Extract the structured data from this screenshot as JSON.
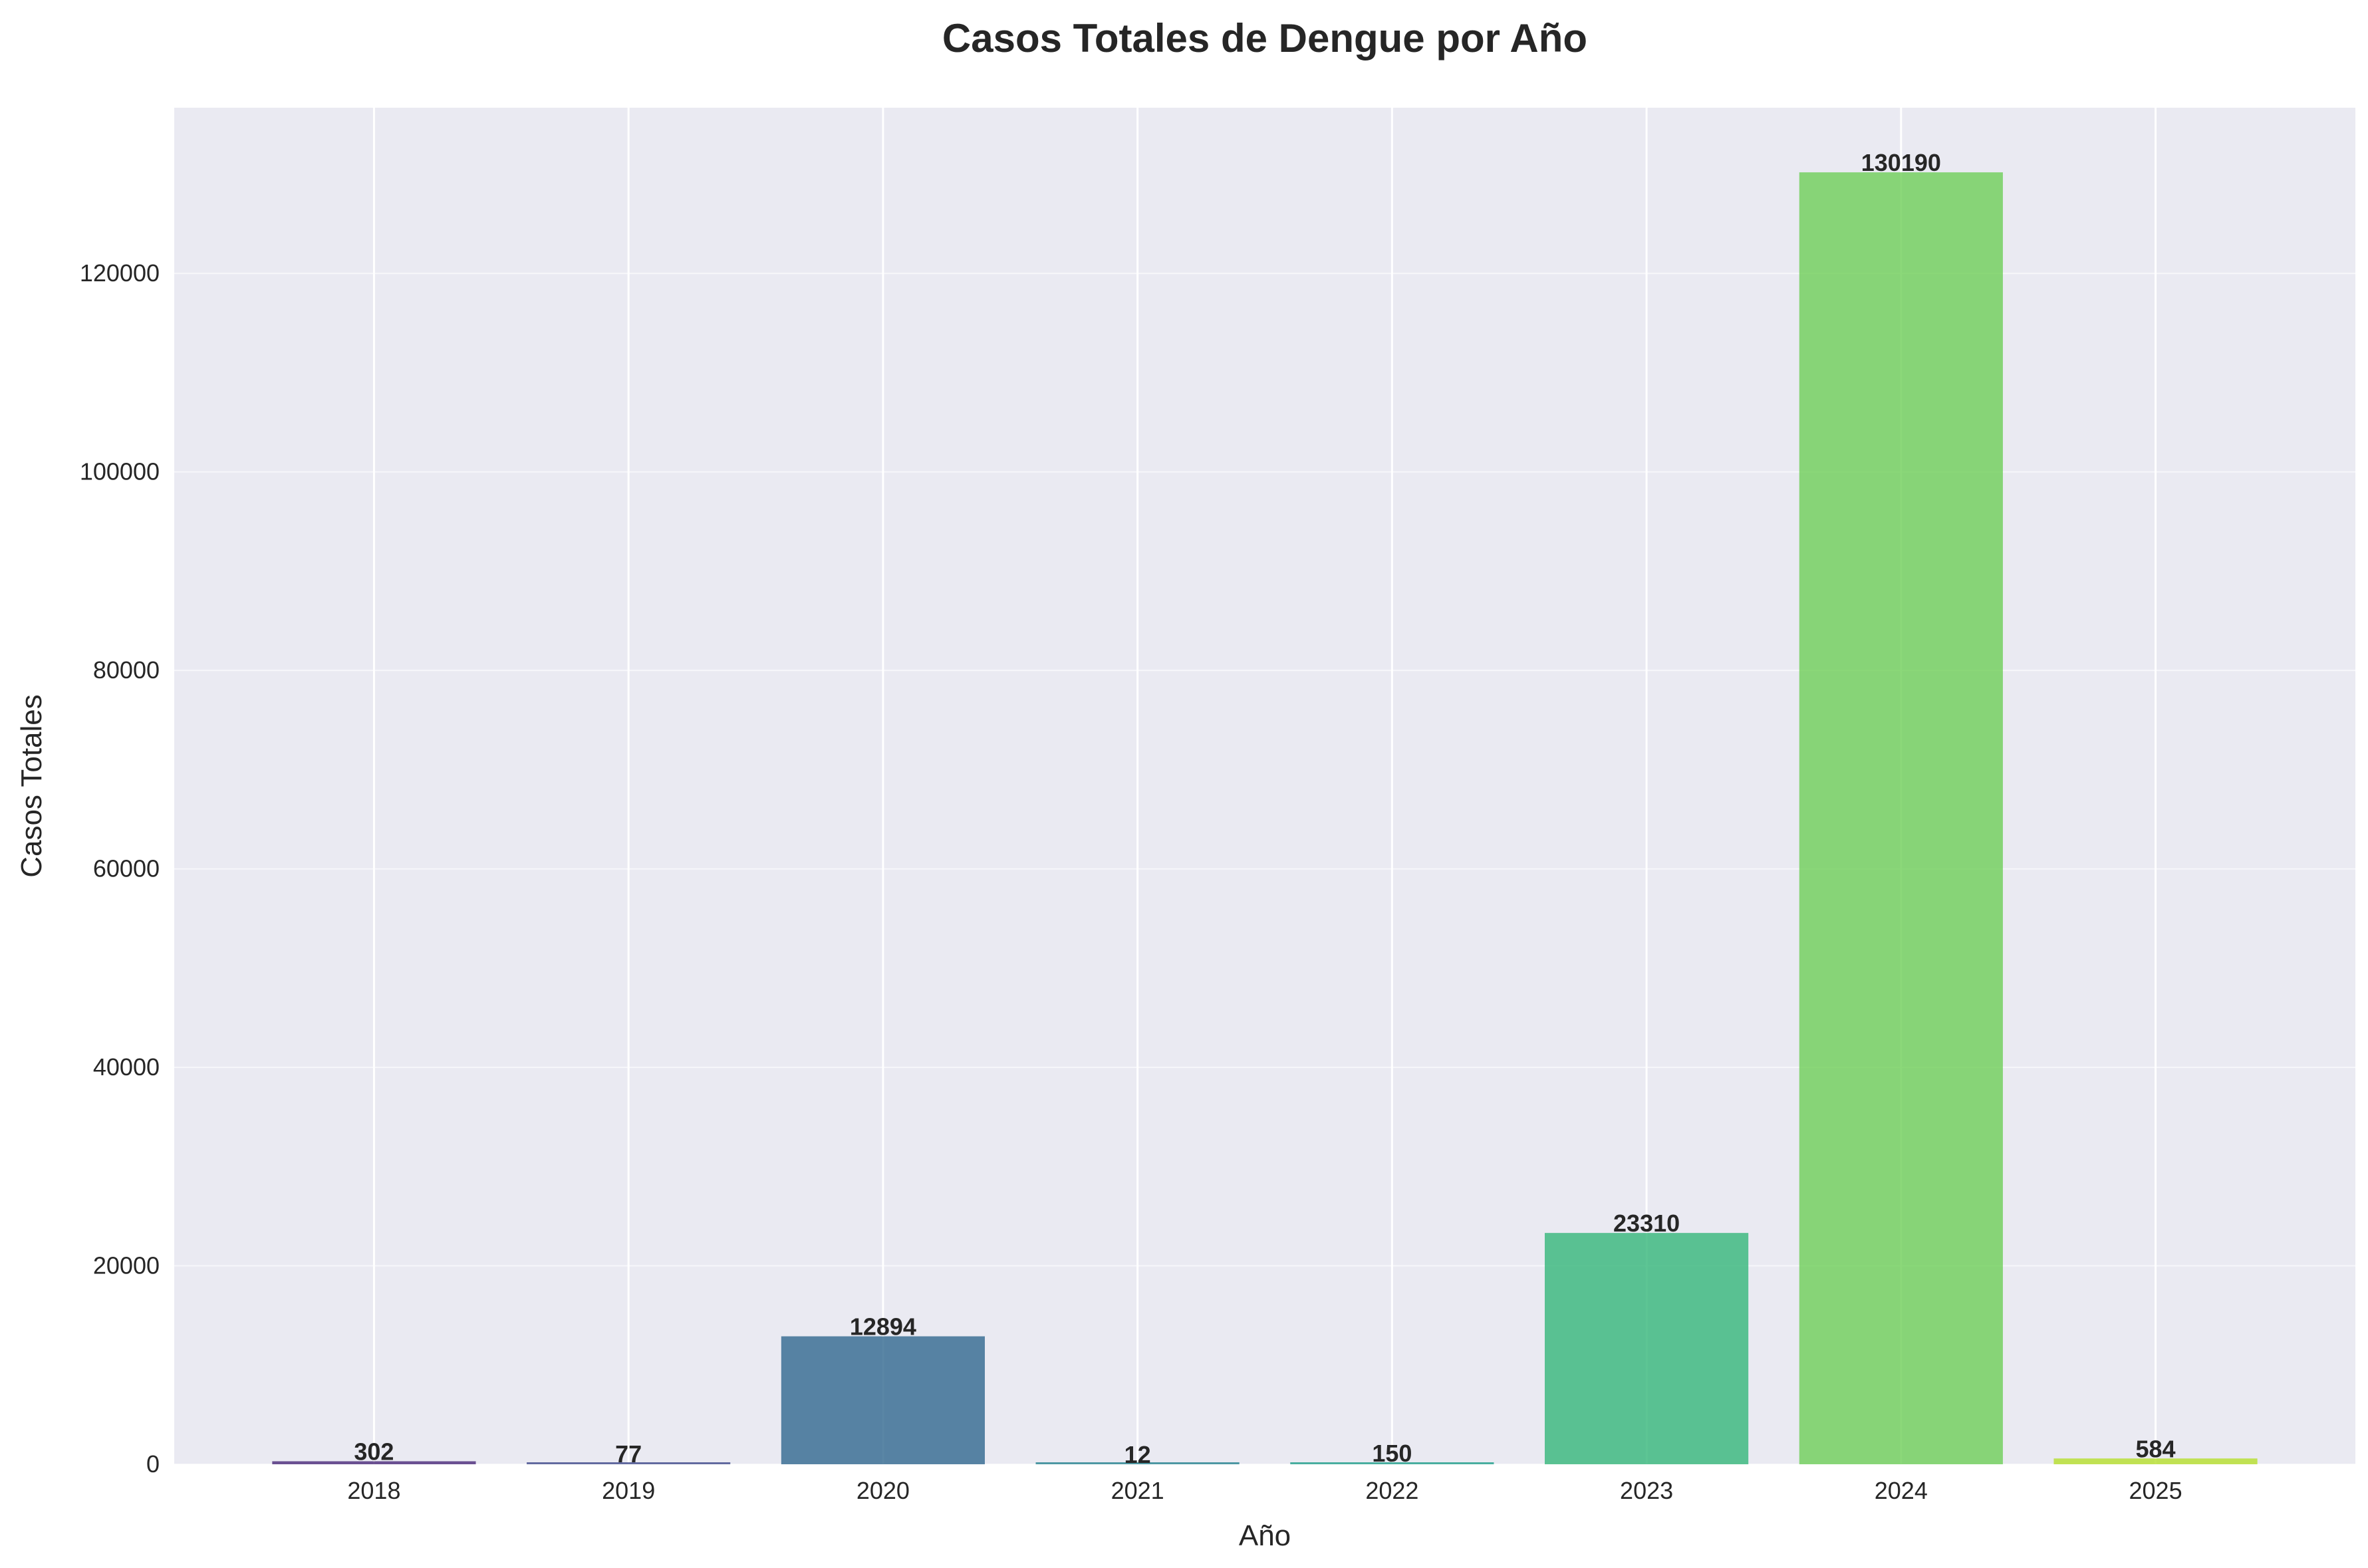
{
  "chart_data": {
    "type": "bar",
    "title": "Casos Totales de Dengue por Año",
    "xlabel": "Año",
    "ylabel": "Casos Totales",
    "categories": [
      "2018",
      "2019",
      "2020",
      "2021",
      "2022",
      "2023",
      "2024",
      "2025"
    ],
    "values": [
      302,
      77,
      12894,
      12,
      150,
      23310,
      130190,
      584
    ],
    "data_labels": [
      "302",
      "77",
      "12894",
      "12",
      "150",
      "23310",
      "130190",
      "584"
    ],
    "colors": [
      "#482878",
      "#3e4989",
      "#31688e",
      "#26828e",
      "#1f9e89",
      "#35b779",
      "#6ece58",
      "#b5de2b"
    ],
    "ylim": [
      0,
      136700
    ],
    "yticks": [
      0,
      20000,
      40000,
      60000,
      80000,
      100000,
      120000
    ],
    "ytick_labels": [
      "0",
      "20000",
      "40000",
      "60000",
      "80000",
      "100000",
      "120000"
    ],
    "grid": true,
    "background": "#eaeaf2",
    "legend": "none"
  }
}
